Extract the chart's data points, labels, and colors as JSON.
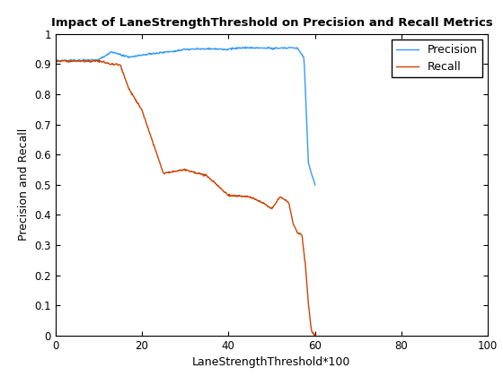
{
  "title": "Impact of LaneStrengthThreshold on Precision and Recall Metrics",
  "xlabel": "LaneStrengthThreshold*100",
  "ylabel": "Precision and Recall",
  "xlim": [
    0,
    100
  ],
  "ylim": [
    0,
    1
  ],
  "xticks": [
    0,
    20,
    40,
    60,
    80,
    100
  ],
  "yticks": [
    0,
    0.1,
    0.2,
    0.3,
    0.4,
    0.5,
    0.6,
    0.7,
    0.8,
    0.9,
    1
  ],
  "precision_color": "#3399FF",
  "recall_color": "#CC4400",
  "legend_labels": [
    "Precision",
    "Recall"
  ],
  "background_color": "#ffffff",
  "line_width": 1.0,
  "figsize": [
    5.6,
    4.2
  ],
  "dpi": 100
}
